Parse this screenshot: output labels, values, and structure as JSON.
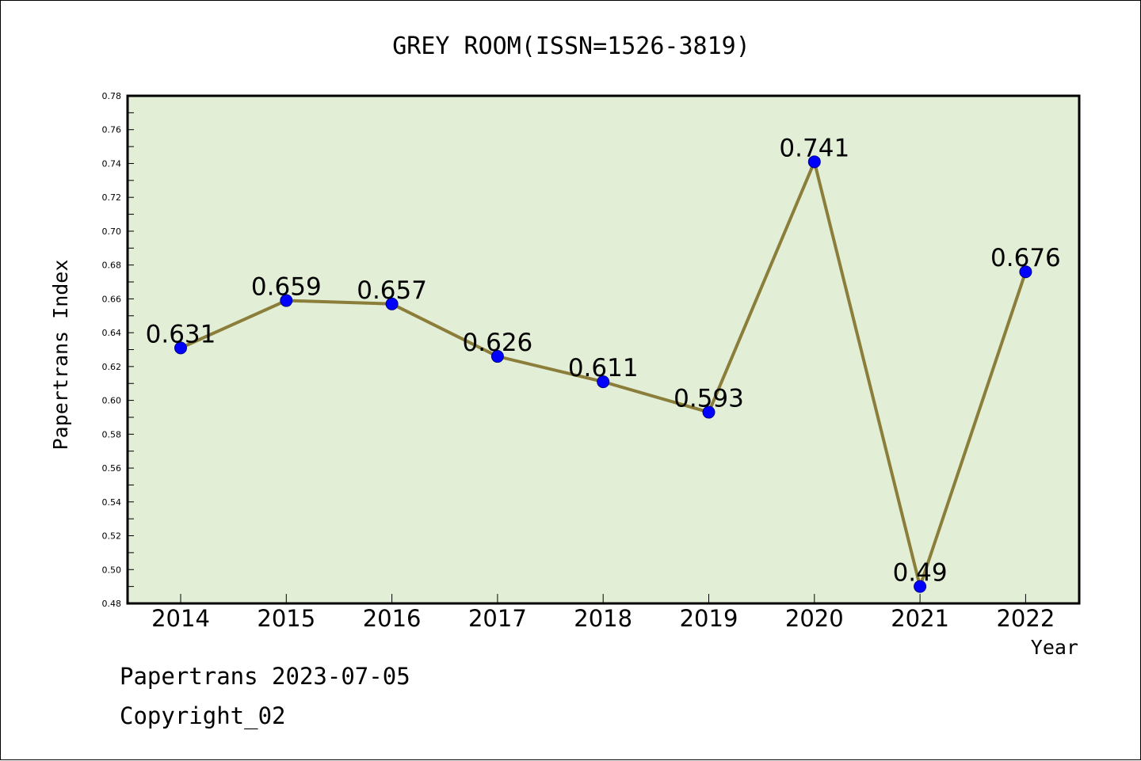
{
  "chart_data": {
    "type": "line",
    "title": "GREY ROOM(ISSN=1526-3819)",
    "xlabel": "Year",
    "ylabel": "Papertrans Index",
    "categories": [
      "2014",
      "2015",
      "2016",
      "2017",
      "2018",
      "2019",
      "2020",
      "2021",
      "2022"
    ],
    "values": [
      0.631,
      0.659,
      0.657,
      0.626,
      0.611,
      0.593,
      0.741,
      0.49,
      0.676
    ],
    "data_labels": [
      "0.631",
      "0.659",
      "0.657",
      "0.626",
      "0.611",
      "0.593",
      "0.741",
      "0.49",
      "0.676"
    ],
    "ylim": [
      0.48,
      0.78
    ],
    "yticks": [
      "0.48",
      "0.50",
      "0.52",
      "0.54",
      "0.56",
      "0.58",
      "0.60",
      "0.62",
      "0.64",
      "0.66",
      "0.68",
      "0.70",
      "0.72",
      "0.74",
      "0.76",
      "0.78"
    ],
    "grid": false,
    "legend": "none",
    "colors": {
      "plot_background": "#e2efd6",
      "line": "#8b7d3a",
      "marker": "#0000ff"
    }
  },
  "footer": {
    "line1": "Papertrans 2023-07-05",
    "line2": "Copyright_02"
  }
}
